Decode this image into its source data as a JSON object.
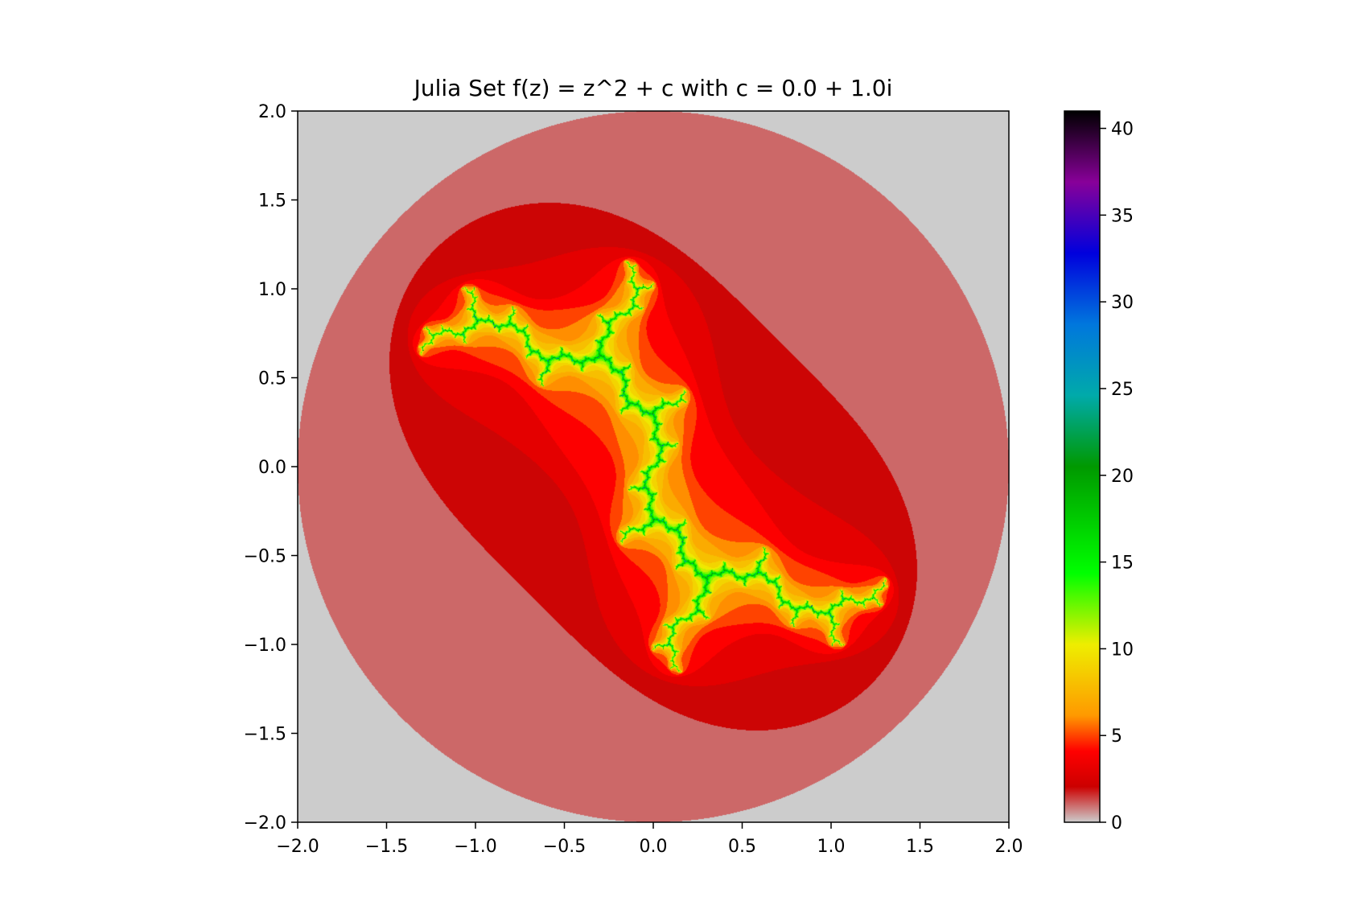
{
  "chart_data": {
    "type": "heatmap",
    "title": "Julia Set f(z) = z^2 + c with c = 0.0 + 1.0i",
    "xlabel": "",
    "ylabel": "",
    "xlim": [
      -2.0,
      2.0
    ],
    "ylim": [
      -2.0,
      2.0
    ],
    "x_ticks": [
      "−2.0",
      "−1.5",
      "−1.0",
      "−0.5",
      "0.0",
      "0.5",
      "1.0",
      "1.5",
      "2.0"
    ],
    "y_ticks": [
      "2.0",
      "1.5",
      "1.0",
      "0.5",
      "0.0",
      "−0.5",
      "−1.0",
      "−1.5",
      "−2.0"
    ],
    "x_tick_values": [
      -2.0,
      -1.5,
      -1.0,
      -0.5,
      0.0,
      0.5,
      1.0,
      1.5,
      2.0
    ],
    "y_tick_values": [
      2.0,
      1.5,
      1.0,
      0.5,
      0.0,
      -0.5,
      -1.0,
      -1.5,
      -2.0
    ],
    "julia_c": {
      "re": 0.0,
      "im": 1.0
    },
    "escape_radius": 2.0,
    "max_iterations": 41,
    "value_range": [
      0,
      41
    ],
    "colormap": "nipy_spectral_r",
    "grid": false,
    "colorbar": {
      "placement": "right",
      "range": [
        0,
        41
      ],
      "ticks": [
        0,
        5,
        10,
        15,
        20,
        25,
        30,
        35,
        40
      ],
      "tick_labels": [
        "0",
        "5",
        "10",
        "15",
        "20",
        "25",
        "30",
        "35",
        "40"
      ],
      "stops": [
        {
          "value": 0.0,
          "color": "#cccccc"
        },
        {
          "value": 0.05,
          "color": "#cc0000"
        },
        {
          "value": 0.1,
          "color": "#ff0000"
        },
        {
          "value": 0.15,
          "color": "#ff9900"
        },
        {
          "value": 0.25,
          "color": "#eeee00"
        },
        {
          "value": 0.35,
          "color": "#00ff00"
        },
        {
          "value": 0.5,
          "color": "#009900"
        },
        {
          "value": 0.6,
          "color": "#00aaaa"
        },
        {
          "value": 0.7,
          "color": "#0077dd"
        },
        {
          "value": 0.8,
          "color": "#0000dd"
        },
        {
          "value": 0.9,
          "color": "#880099"
        },
        {
          "value": 1.0,
          "color": "#000000"
        }
      ]
    }
  }
}
